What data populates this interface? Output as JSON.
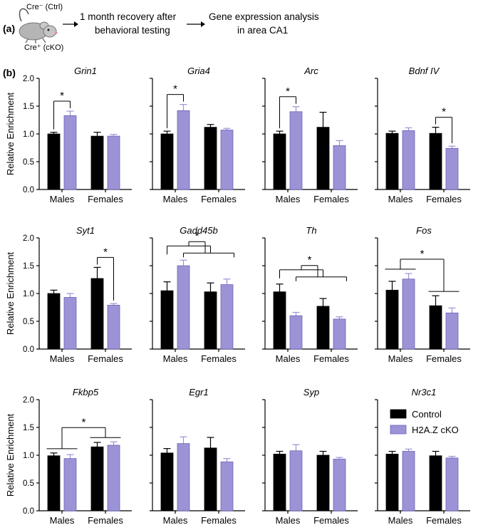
{
  "panel_a": {
    "label": "(a)",
    "ctrl_label": "Cre⁻ (Ctrl)",
    "cko_label": "Cre⁺ (cKO)",
    "step1_line1": "1 month recovery after",
    "step1_line2": "behavioral testing",
    "step2_line1": "Gene expression analysis",
    "step2_line2": "in area CA1"
  },
  "panel_b": {
    "label": "(b)"
  },
  "colors": {
    "control": "#000000",
    "cko": "#9b93d6",
    "axis": "#000000"
  },
  "chart_data": {
    "type": "bar",
    "groups": [
      "Males",
      "Females"
    ],
    "series": [
      {
        "name": "Control",
        "color": "#000000"
      },
      {
        "name": "H2A.Z cKO",
        "color": "#9b93d6"
      }
    ],
    "ylabel": "Relative Enrichment",
    "ylim": [
      0,
      2.0
    ],
    "yticks": [
      "0.0",
      "0.5",
      "1.0",
      "1.5",
      "2.0"
    ],
    "legend": {
      "position": "top-right of last panel",
      "entries": [
        "Control",
        "H2A.Z cKO"
      ]
    },
    "panels": [
      {
        "gene": "Grin1",
        "means": [
          [
            1.0,
            1.33
          ],
          [
            0.96,
            0.96
          ]
        ],
        "errors": [
          [
            0.03,
            0.08
          ],
          [
            0.07,
            0.03
          ]
        ],
        "sig": "*",
        "sig_type": "males"
      },
      {
        "gene": "Gria4",
        "means": [
          [
            1.0,
            1.42
          ],
          [
            1.12,
            1.07
          ]
        ],
        "errors": [
          [
            0.05,
            0.11
          ],
          [
            0.05,
            0.03
          ]
        ],
        "sig": "*",
        "sig_type": "males"
      },
      {
        "gene": "Arc",
        "means": [
          [
            1.0,
            1.4
          ],
          [
            1.12,
            0.79
          ]
        ],
        "errors": [
          [
            0.05,
            0.09
          ],
          [
            0.27,
            0.09
          ]
        ],
        "sig": "*",
        "sig_type": "males"
      },
      {
        "gene": "Bdnf IV",
        "means": [
          [
            1.01,
            1.06
          ],
          [
            1.01,
            0.74
          ]
        ],
        "errors": [
          [
            0.04,
            0.05
          ],
          [
            0.11,
            0.04
          ]
        ],
        "sig": "*",
        "sig_type": "females"
      },
      {
        "gene": "Syt1",
        "means": [
          [
            1.0,
            0.93
          ],
          [
            1.27,
            0.79
          ]
        ],
        "errors": [
          [
            0.06,
            0.07
          ],
          [
            0.2,
            0.03
          ]
        ],
        "sig": "*",
        "sig_type": "females"
      },
      {
        "gene": "Gadd45b",
        "means": [
          [
            1.05,
            1.5
          ],
          [
            1.03,
            1.16
          ]
        ],
        "errors": [
          [
            0.16,
            0.1
          ],
          [
            0.16,
            0.1
          ]
        ],
        "sig": "*",
        "sig_type": "interaction"
      },
      {
        "gene": "Th",
        "means": [
          [
            1.03,
            0.6
          ],
          [
            0.77,
            0.54
          ]
        ],
        "errors": [
          [
            0.14,
            0.06
          ],
          [
            0.14,
            0.04
          ]
        ],
        "sig": "*",
        "sig_type": "interaction"
      },
      {
        "gene": "Fos",
        "means": [
          [
            1.06,
            1.26
          ],
          [
            0.78,
            0.65
          ]
        ],
        "errors": [
          [
            0.16,
            0.1
          ],
          [
            0.18,
            0.09
          ]
        ],
        "sig": "*",
        "sig_type": "sex"
      },
      {
        "gene": "Fkbp5",
        "means": [
          [
            0.99,
            0.94
          ],
          [
            1.15,
            1.18
          ]
        ],
        "errors": [
          [
            0.05,
            0.07
          ],
          [
            0.08,
            0.06
          ]
        ],
        "sig": "*",
        "sig_type": "sex"
      },
      {
        "gene": "Egr1",
        "means": [
          [
            1.04,
            1.21
          ],
          [
            1.13,
            0.88
          ]
        ],
        "errors": [
          [
            0.08,
            0.12
          ],
          [
            0.19,
            0.06
          ]
        ],
        "sig": "",
        "sig_type": "none"
      },
      {
        "gene": "Syp",
        "means": [
          [
            1.02,
            1.08
          ],
          [
            1.0,
            0.93
          ]
        ],
        "errors": [
          [
            0.05,
            0.11
          ],
          [
            0.07,
            0.03
          ]
        ],
        "sig": "",
        "sig_type": "none"
      },
      {
        "gene": "Nr3c1",
        "means": [
          [
            1.02,
            1.07
          ],
          [
            0.99,
            0.95
          ]
        ],
        "errors": [
          [
            0.05,
            0.04
          ],
          [
            0.08,
            0.03
          ]
        ],
        "sig": "",
        "sig_type": "none"
      }
    ]
  }
}
